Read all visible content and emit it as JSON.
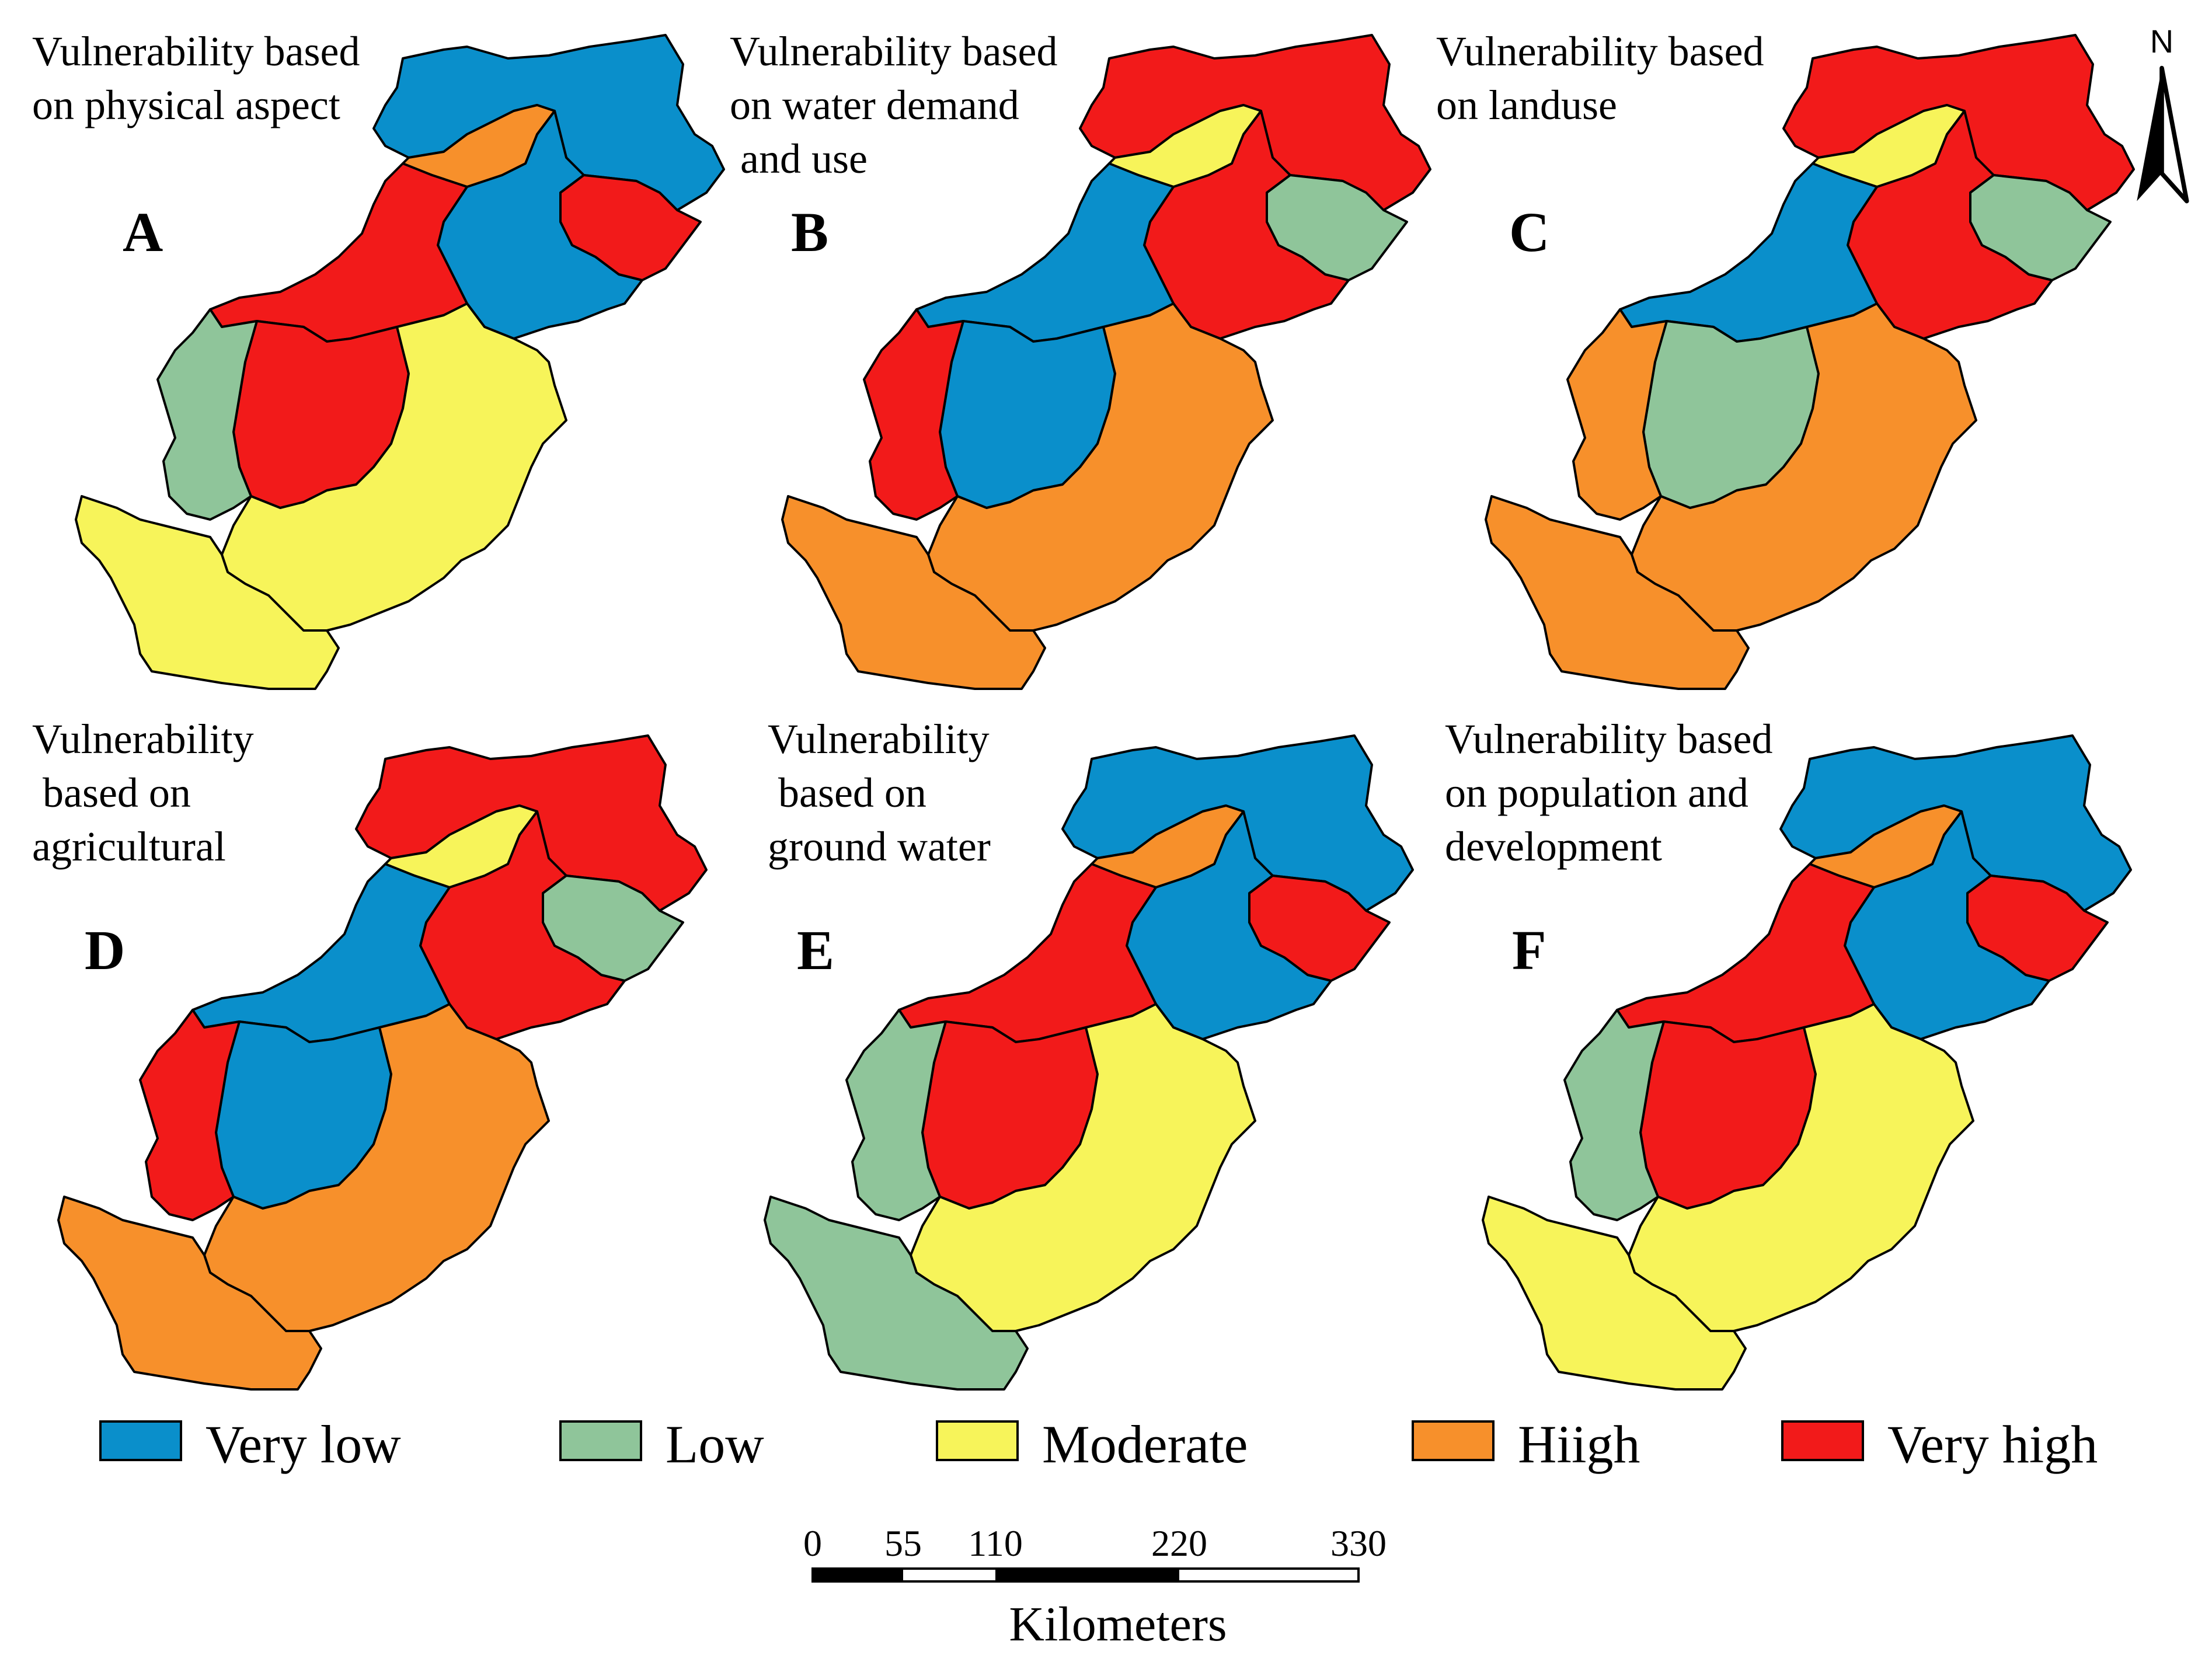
{
  "panels": [
    {
      "letter": "A",
      "title": [
        "Vulnerability based",
        "on physical aspect"
      ],
      "classes": {
        "ne": "very_low",
        "center_e": "very_low",
        "east": "very_high",
        "neck": "high",
        "mid": "very_high",
        "south_center": "very_high",
        "west_strip": "low",
        "south_east": "moderate",
        "south_west": "moderate"
      }
    },
    {
      "letter": "B",
      "title": [
        "Vulnerability based",
        "on water demand",
        " and use"
      ],
      "classes": {
        "ne": "very_high",
        "center_e": "very_high",
        "east": "low",
        "neck": "moderate",
        "mid": "very_low",
        "south_center": "very_low",
        "west_strip": "very_high",
        "south_east": "high",
        "south_west": "high"
      }
    },
    {
      "letter": "C",
      "title": [
        "Vulnerability based",
        "on landuse"
      ],
      "classes": {
        "ne": "very_high",
        "center_e": "very_high",
        "east": "low",
        "neck": "moderate",
        "mid": "very_low",
        "south_center": "low",
        "west_strip": "high",
        "south_east": "high",
        "south_west": "high"
      }
    },
    {
      "letter": "D",
      "title": [
        "Vulnerability",
        " based on",
        "agricultural"
      ],
      "classes": {
        "ne": "very_high",
        "center_e": "very_high",
        "east": "low",
        "neck": "moderate",
        "mid": "very_low",
        "south_center": "very_low",
        "west_strip": "very_high",
        "south_east": "high",
        "south_west": "high"
      }
    },
    {
      "letter": "E",
      "title": [
        "Vulnerability",
        " based on",
        "ground water"
      ],
      "classes": {
        "ne": "very_low",
        "center_e": "very_low",
        "east": "very_high",
        "neck": "high",
        "mid": "very_high",
        "south_center": "very_high",
        "west_strip": "low",
        "south_east": "moderate",
        "south_west": "low"
      }
    },
    {
      "letter": "F",
      "title": [
        "Vulnerability based",
        "on population and",
        "development"
      ],
      "classes": {
        "ne": "very_low",
        "center_e": "very_low",
        "east": "very_high",
        "neck": "high",
        "mid": "very_high",
        "south_center": "very_high",
        "west_strip": "low",
        "south_east": "moderate",
        "south_west": "moderate"
      }
    }
  ],
  "legend": [
    {
      "key": "very_low",
      "label": "Very low",
      "color": "#0A8FCB"
    },
    {
      "key": "low",
      "label": "Low",
      "color": "#8FC59A"
    },
    {
      "key": "moderate",
      "label": "Moderate",
      "color": "#F7F45A"
    },
    {
      "key": "high",
      "label": "Hiigh",
      "color": "#F7902B"
    },
    {
      "key": "very_high",
      "label": "Very high",
      "color": "#F21A1A"
    }
  ],
  "scale_bar": {
    "ticks": [
      "0",
      "55",
      "110",
      "220",
      "330"
    ],
    "unit": "Kilometers"
  },
  "north_arrow": {
    "label": "N"
  }
}
